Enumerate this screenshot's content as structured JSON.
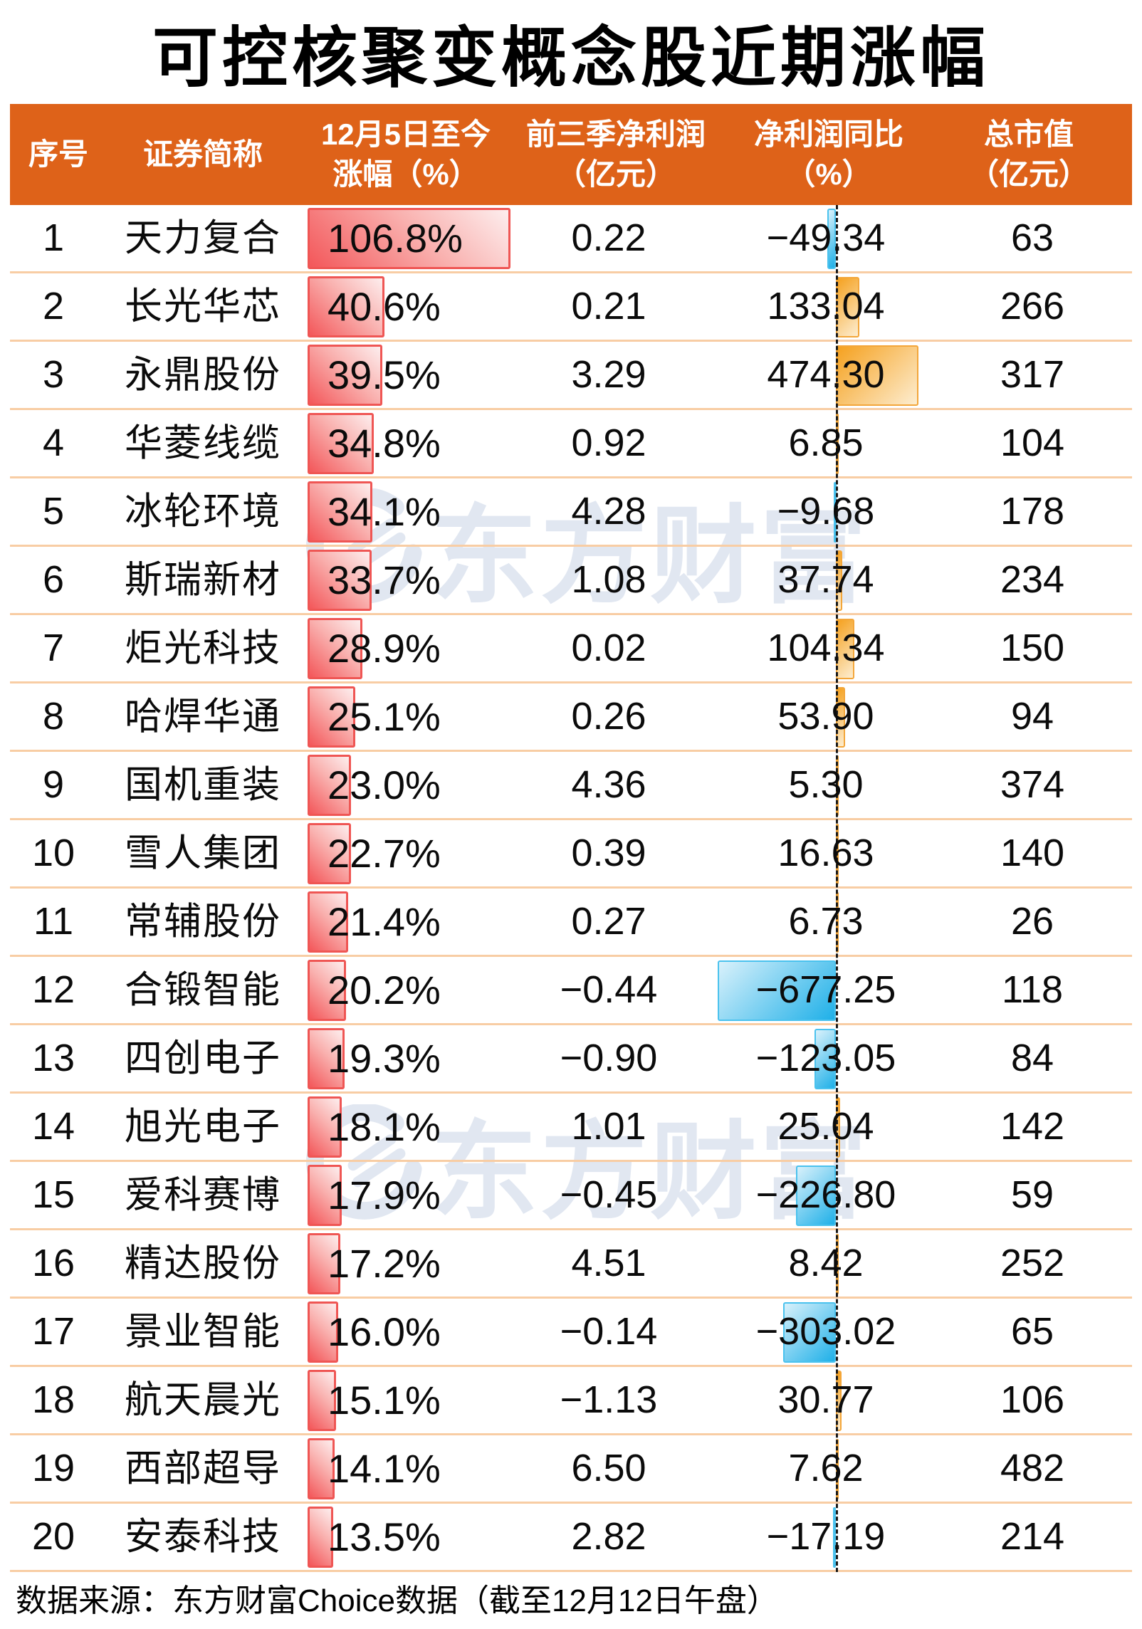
{
  "title": "可控核聚变概念股近期涨幅",
  "header": {
    "col_index": "序号",
    "col_name": "证券简称",
    "col_gain_line1": "12月5日至今",
    "col_gain_line2": "涨幅（%）",
    "col_profit_line1": "前三季净利润",
    "col_profit_line2": "（亿元）",
    "col_yoy_line1": "净利润同比",
    "col_yoy_line2": "（%）",
    "col_mcap_line1": "总市值",
    "col_mcap_line2": "（亿元）"
  },
  "rows": [
    {
      "index": "1",
      "name": "天力复合",
      "gain": "106.8%",
      "gain_value": 106.8,
      "profit": "0.22",
      "yoy": "−49.34",
      "yoy_value": -49.34,
      "mcap": "63"
    },
    {
      "index": "2",
      "name": "长光华芯",
      "gain": "40.6%",
      "gain_value": 40.6,
      "profit": "0.21",
      "yoy": "133.04",
      "yoy_value": 133.04,
      "mcap": "266"
    },
    {
      "index": "3",
      "name": "永鼎股份",
      "gain": "39.5%",
      "gain_value": 39.5,
      "profit": "3.29",
      "yoy": "474.30",
      "yoy_value": 474.3,
      "mcap": "317"
    },
    {
      "index": "4",
      "name": "华菱线缆",
      "gain": "34.8%",
      "gain_value": 34.8,
      "profit": "0.92",
      "yoy": "6.85",
      "yoy_value": 6.85,
      "mcap": "104"
    },
    {
      "index": "5",
      "name": "冰轮环境",
      "gain": "34.1%",
      "gain_value": 34.1,
      "profit": "4.28",
      "yoy": "−9.68",
      "yoy_value": -9.68,
      "mcap": "178"
    },
    {
      "index": "6",
      "name": "斯瑞新材",
      "gain": "33.7%",
      "gain_value": 33.7,
      "profit": "1.08",
      "yoy": "37.74",
      "yoy_value": 37.74,
      "mcap": "234"
    },
    {
      "index": "7",
      "name": "炬光科技",
      "gain": "28.9%",
      "gain_value": 28.9,
      "profit": "0.02",
      "yoy": "104.34",
      "yoy_value": 104.34,
      "mcap": "150"
    },
    {
      "index": "8",
      "name": "哈焊华通",
      "gain": "25.1%",
      "gain_value": 25.1,
      "profit": "0.26",
      "yoy": "53.90",
      "yoy_value": 53.9,
      "mcap": "94"
    },
    {
      "index": "9",
      "name": "国机重装",
      "gain": "23.0%",
      "gain_value": 23.0,
      "profit": "4.36",
      "yoy": "5.30",
      "yoy_value": 5.3,
      "mcap": "374"
    },
    {
      "index": "10",
      "name": "雪人集团",
      "gain": "22.7%",
      "gain_value": 22.7,
      "profit": "0.39",
      "yoy": "16.63",
      "yoy_value": 16.63,
      "mcap": "140"
    },
    {
      "index": "11",
      "name": "常辅股份",
      "gain": "21.4%",
      "gain_value": 21.4,
      "profit": "0.27",
      "yoy": "6.73",
      "yoy_value": 6.73,
      "mcap": "26"
    },
    {
      "index": "12",
      "name": "合锻智能",
      "gain": "20.2%",
      "gain_value": 20.2,
      "profit": "−0.44",
      "yoy": "−677.25",
      "yoy_value": -677.25,
      "mcap": "118"
    },
    {
      "index": "13",
      "name": "四创电子",
      "gain": "19.3%",
      "gain_value": 19.3,
      "profit": "−0.90",
      "yoy": "−123.05",
      "yoy_value": -123.05,
      "mcap": "84"
    },
    {
      "index": "14",
      "name": "旭光电子",
      "gain": "18.1%",
      "gain_value": 18.1,
      "profit": "1.01",
      "yoy": "25.04",
      "yoy_value": 25.04,
      "mcap": "142"
    },
    {
      "index": "15",
      "name": "爱科赛博",
      "gain": "17.9%",
      "gain_value": 17.9,
      "profit": "−0.45",
      "yoy": "−226.80",
      "yoy_value": -226.8,
      "mcap": "59"
    },
    {
      "index": "16",
      "name": "精达股份",
      "gain": "17.2%",
      "gain_value": 17.2,
      "profit": "4.51",
      "yoy": "8.42",
      "yoy_value": 8.42,
      "mcap": "252"
    },
    {
      "index": "17",
      "name": "景业智能",
      "gain": "16.0%",
      "gain_value": 16.0,
      "profit": "−0.14",
      "yoy": "−303.02",
      "yoy_value": -303.02,
      "mcap": "65"
    },
    {
      "index": "18",
      "name": "航天晨光",
      "gain": "15.1%",
      "gain_value": 15.1,
      "profit": "−1.13",
      "yoy": "30.77",
      "yoy_value": 30.77,
      "mcap": "106"
    },
    {
      "index": "19",
      "name": "西部超导",
      "gain": "14.1%",
      "gain_value": 14.1,
      "profit": "6.50",
      "yoy": "7.62",
      "yoy_value": 7.62,
      "mcap": "482"
    },
    {
      "index": "20",
      "name": "安泰科技",
      "gain": "13.5%",
      "gain_value": 13.5,
      "profit": "2.82",
      "yoy": "−17.19",
      "yoy_value": -17.19,
      "mcap": "214"
    }
  ],
  "watermark": {
    "text": "东方财富"
  },
  "footer": "数据来源：东方财富Choice数据（截至12月12日午盘）",
  "colors": {
    "header_bg": "#DE6219",
    "header_text": "#FFFFFF",
    "row_separator": "#F8CDA4",
    "gain_bar_start": "#F3575A",
    "gain_bar_end": "#FDEEEE",
    "gain_bar_border": "#EF5654",
    "yoy_pos_start": "#F5A11F",
    "yoy_pos_end": "#FDEDD0",
    "yoy_pos_border": "#F3A63A",
    "yoy_neg_start": "#D9F1FB",
    "yoy_neg_end": "#1FB0E8",
    "yoy_neg_border": "#4AC2EE",
    "zero_line": "#1B1B1B",
    "watermark": "#E1E7F1",
    "text": "#0B0B0B"
  },
  "chart_data": {
    "type": "table",
    "title": "可控核聚变概念股近期涨幅",
    "columns": [
      "序号",
      "证券简称",
      "12月5日至今涨幅（%）",
      "前三季净利润（亿元）",
      "净利润同比（%）",
      "总市值（亿元）"
    ],
    "rows": [
      [
        1,
        "天力复合",
        106.8,
        0.22,
        -49.34,
        63
      ],
      [
        2,
        "长光华芯",
        40.6,
        0.21,
        133.04,
        266
      ],
      [
        3,
        "永鼎股份",
        39.5,
        3.29,
        474.3,
        317
      ],
      [
        4,
        "华菱线缆",
        34.8,
        0.92,
        6.85,
        104
      ],
      [
        5,
        "冰轮环境",
        34.1,
        4.28,
        -9.68,
        178
      ],
      [
        6,
        "斯瑞新材",
        33.7,
        1.08,
        37.74,
        234
      ],
      [
        7,
        "炬光科技",
        28.9,
        0.02,
        104.34,
        150
      ],
      [
        8,
        "哈焊华通",
        25.1,
        0.26,
        53.9,
        94
      ],
      [
        9,
        "国机重装",
        23.0,
        4.36,
        5.3,
        374
      ],
      [
        10,
        "雪人集团",
        22.7,
        0.39,
        16.63,
        140
      ],
      [
        11,
        "常辅股份",
        21.4,
        0.27,
        6.73,
        26
      ],
      [
        12,
        "合锻智能",
        20.2,
        -0.44,
        -677.25,
        118
      ],
      [
        13,
        "四创电子",
        19.3,
        -0.9,
        -123.05,
        84
      ],
      [
        14,
        "旭光电子",
        18.1,
        1.01,
        25.04,
        142
      ],
      [
        15,
        "爱科赛博",
        17.9,
        -0.45,
        -226.8,
        59
      ],
      [
        16,
        "精达股份",
        17.2,
        4.51,
        8.42,
        252
      ],
      [
        17,
        "景业智能",
        16.0,
        -0.14,
        -303.02,
        65
      ],
      [
        18,
        "航天晨光",
        15.1,
        -1.13,
        30.77,
        106
      ],
      [
        19,
        "西部超导",
        14.1,
        6.5,
        7.62,
        482
      ],
      [
        20,
        "安泰科技",
        13.5,
        2.82,
        -17.19,
        214
      ]
    ],
    "embedded_bars": {
      "gain_column": {
        "type": "bar",
        "color_style": "red gradient, left-anchored"
      },
      "yoy_column": {
        "type": "bar",
        "zero_axis": "black dashed vertical line",
        "positive_color": "orange gradient",
        "negative_color": "blue gradient"
      }
    },
    "legend_position": "none",
    "grid": "horizontal row separators only"
  }
}
